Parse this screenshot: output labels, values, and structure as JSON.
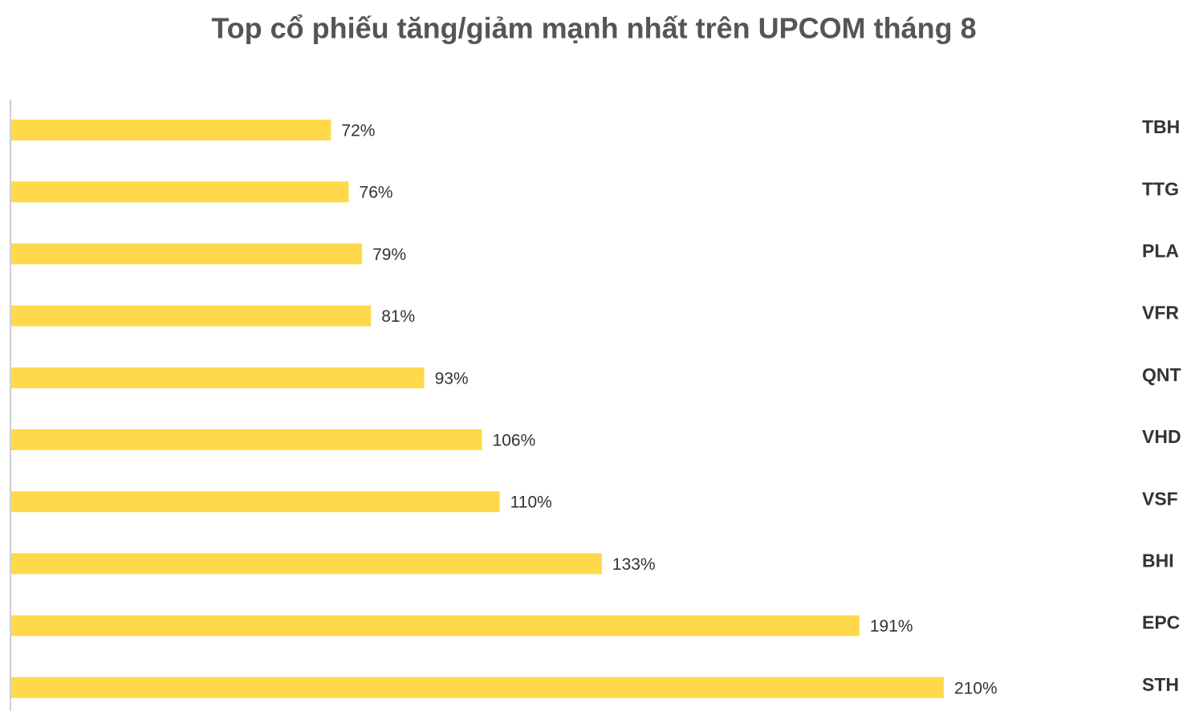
{
  "chart_data": {
    "type": "barh",
    "title": "Top cổ phiếu tăng/giảm mạnh nhất trên UPCOM tháng 8",
    "categories": [
      "TBH",
      "TTG",
      "PLA",
      "VFR",
      "QNT",
      "VHD",
      "VSF",
      "BHI",
      "EPC",
      "STH"
    ],
    "values": [
      72,
      76,
      79,
      81,
      93,
      106,
      110,
      133,
      191,
      210
    ],
    "value_labels": [
      "72%",
      "76%",
      "79%",
      "81%",
      "93%",
      "106%",
      "110%",
      "133%",
      "191%",
      "210%"
    ],
    "color": "#ffd94a"
  }
}
